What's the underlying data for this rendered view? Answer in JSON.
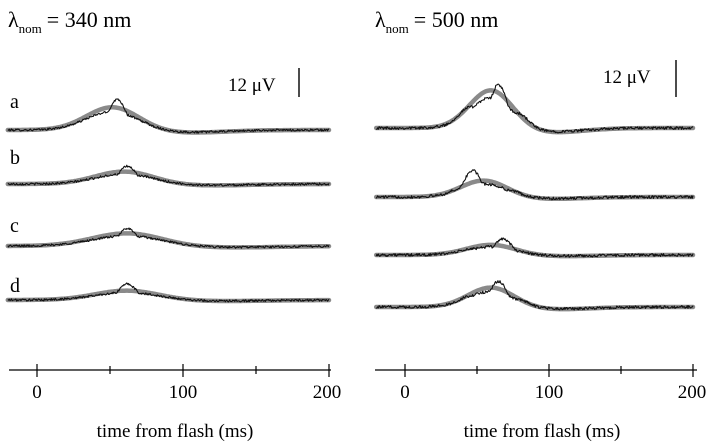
{
  "chart_data": [
    {
      "type": "line",
      "title": {
        "symbol": "λ",
        "subscript": "nom",
        "value": "= 340 nm"
      },
      "scale_bar": {
        "label": "12 μV",
        "microvolts": 12
      },
      "xlabel": "time from flash (ms)",
      "xlim": [
        -20,
        200
      ],
      "xticks": [
        0,
        100,
        200
      ],
      "minor_xticks": [
        50,
        150
      ],
      "trace_labels": [
        "a",
        "b",
        "c",
        "d"
      ],
      "series": [
        {
          "label": "a",
          "peak_ms": 55,
          "peak_uV": 13,
          "fit_center_ms": 52,
          "fit_width_ms": 18,
          "fit_amp_uV": 9.7
        },
        {
          "label": "b",
          "peak_ms": 62,
          "peak_uV": 7.5,
          "fit_center_ms": 60,
          "fit_width_ms": 20,
          "fit_amp_uV": 5.3
        },
        {
          "label": "c",
          "peak_ms": 62,
          "peak_uV": 7.5,
          "fit_center_ms": 62,
          "fit_width_ms": 24,
          "fit_amp_uV": 5.4
        },
        {
          "label": "d",
          "peak_ms": 62,
          "peak_uV": 6.8,
          "fit_center_ms": 62,
          "fit_width_ms": 22,
          "fit_amp_uV": 4.0
        }
      ]
    },
    {
      "type": "line",
      "title": {
        "symbol": "λ",
        "subscript": "nom",
        "value": "= 500 nm"
      },
      "scale_bar": {
        "label": "12 μV",
        "microvolts": 12
      },
      "xlabel": "time from flash (ms)",
      "xlim": [
        -20,
        200
      ],
      "xticks": [
        0,
        100,
        200
      ],
      "minor_xticks": [
        50,
        150
      ],
      "series": [
        {
          "label": "a",
          "peak_ms": 65,
          "peak_uV": 14.5,
          "fit_center_ms": 60,
          "fit_width_ms": 15,
          "fit_amp_uV": 12.6
        },
        {
          "label": "b",
          "peak_ms": 47,
          "peak_uV": 8.7,
          "fit_center_ms": 55,
          "fit_width_ms": 16,
          "fit_amp_uV": 5.5
        },
        {
          "label": "c",
          "peak_ms": 68,
          "peak_uV": 5.4,
          "fit_center_ms": 60,
          "fit_width_ms": 17,
          "fit_amp_uV": 3.4
        },
        {
          "label": "d",
          "peak_ms": 65,
          "peak_uV": 8.5,
          "fit_center_ms": 60,
          "fit_width_ms": 16,
          "fit_amp_uV": 6.5
        }
      ]
    }
  ]
}
